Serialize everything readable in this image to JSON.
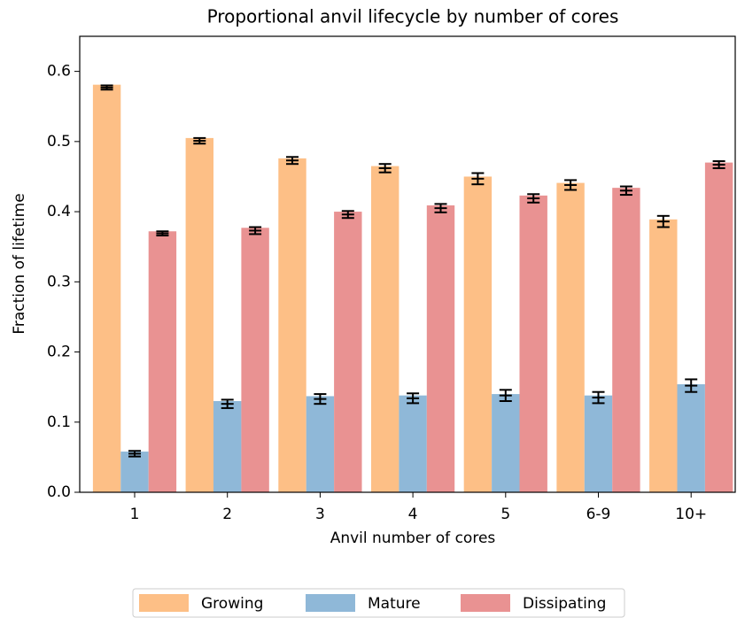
{
  "chart_data": {
    "type": "bar",
    "title": "Proportional anvil lifecycle by number of cores",
    "x_label": "Anvil number of cores",
    "y_label": "Fraction of lifetime",
    "categories": [
      "1",
      "2",
      "3",
      "4",
      "5",
      "6-9",
      "10+"
    ],
    "series": [
      {
        "name": "Growing",
        "color": "#fdbf86",
        "values": [
          0.581,
          0.505,
          0.476,
          0.465,
          0.45,
          0.441,
          0.389
        ],
        "error_centers": [
          0.577,
          0.501,
          0.473,
          0.462,
          0.447,
          0.438,
          0.386
        ],
        "errors": [
          0.003,
          0.004,
          0.005,
          0.006,
          0.008,
          0.007,
          0.008
        ]
      },
      {
        "name": "Mature",
        "color": "#8fb8d8",
        "values": [
          0.058,
          0.13,
          0.137,
          0.138,
          0.14,
          0.138,
          0.154
        ],
        "error_centers": [
          0.055,
          0.126,
          0.133,
          0.134,
          0.138,
          0.135,
          0.152
        ],
        "errors": [
          0.004,
          0.006,
          0.007,
          0.007,
          0.008,
          0.008,
          0.009
        ]
      },
      {
        "name": "Dissipating",
        "color": "#e99292",
        "values": [
          0.372,
          0.377,
          0.4,
          0.409,
          0.423,
          0.434,
          0.47
        ],
        "error_centers": [
          0.369,
          0.373,
          0.396,
          0.405,
          0.419,
          0.43,
          0.467
        ],
        "errors": [
          0.003,
          0.005,
          0.005,
          0.006,
          0.006,
          0.006,
          0.005
        ]
      }
    ],
    "ylim": [
      0,
      0.65
    ],
    "yticks": [
      {
        "value": 0,
        "label": "0.0"
      },
      0.1,
      0.2,
      0.3,
      0.4,
      0.5,
      0.6
    ],
    "legend": "bottom"
  }
}
